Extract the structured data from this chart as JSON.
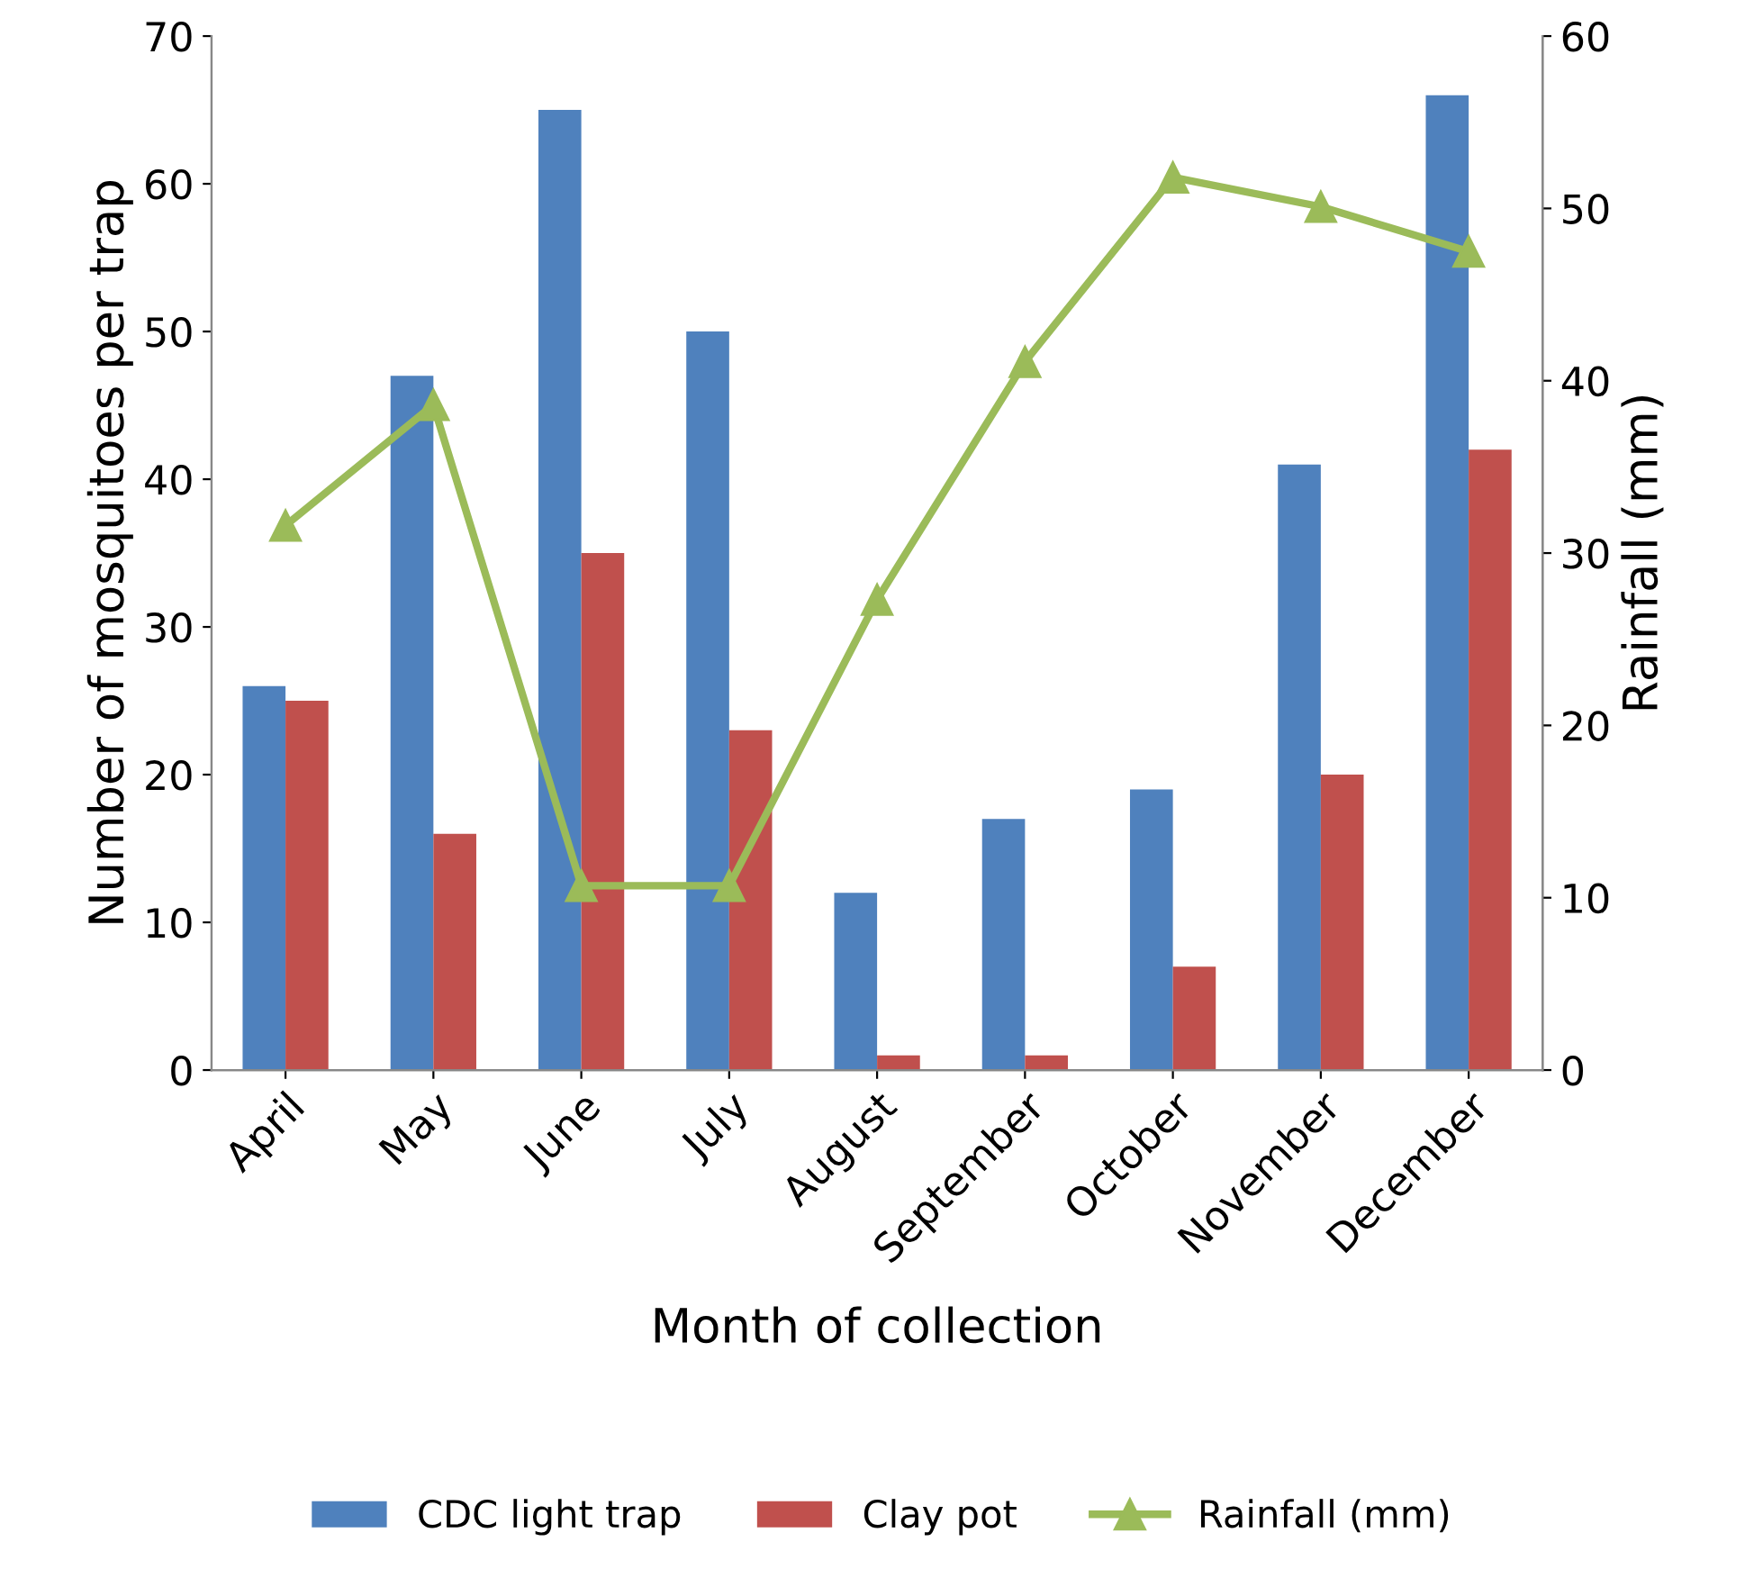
{
  "chart_data": {
    "type": "bar",
    "xlabel": "Month of collection",
    "ylabel": "Number of mosquitoes per trap",
    "y2label": "Rainfall (mm)",
    "categories": [
      "April",
      "May",
      "June",
      "July",
      "August",
      "September",
      "October",
      "November",
      "December"
    ],
    "series": [
      {
        "name": "CDC light trap",
        "color": "#4f81bd",
        "values": [
          26,
          47,
          65,
          50,
          12,
          17,
          19,
          41,
          66
        ]
      },
      {
        "name": "Clay pot",
        "color": "#c0504d",
        "values": [
          25,
          16,
          35,
          23,
          1,
          1,
          7,
          20,
          42
        ]
      },
      {
        "name": "Rainfall (mm)",
        "type": "line",
        "axis": "y2",
        "color": "#9bbb59",
        "marker": "triangle",
        "values": [
          31.6,
          38.6,
          10.7,
          10.7,
          27.3,
          41.1,
          51.8,
          50.1,
          47.5
        ]
      }
    ],
    "ylim": [
      0,
      70
    ],
    "yticks": [
      0,
      10,
      20,
      30,
      40,
      50,
      60,
      70
    ],
    "y2lim": [
      0,
      60
    ],
    "y2ticks": [
      0,
      10,
      20,
      30,
      40,
      50,
      60
    ],
    "legend": "bottom",
    "grid": false
  }
}
